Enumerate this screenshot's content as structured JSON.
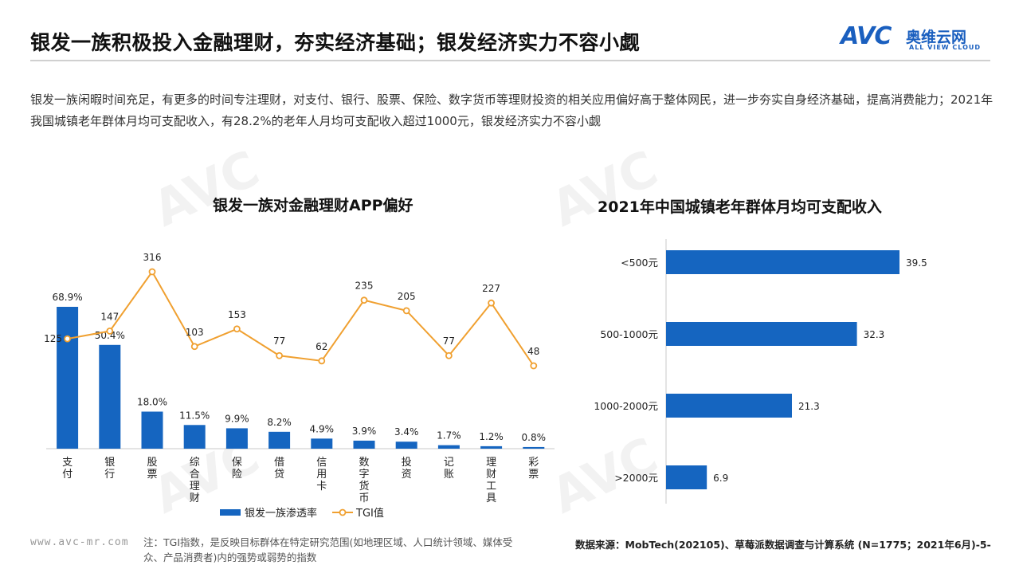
{
  "header": {
    "title": "银发一族积极投入金融理财，夯实经济基础；银发经济实力不容小觑",
    "logo_main": "AVC",
    "logo_cn": "奥维云网",
    "logo_en": "ALL VIEW CLOUD"
  },
  "intro": "银发一族闲暇时间充足，有更多的时间专注理财，对支付、银行、股票、保险、数字货币等理财投资的相关应用偏好高于整体网民，进一步夯实自身经济基础，提高消费能力；2021年我国城镇老年群体月均可支配收入，有28.2%的老年人月均可支配收入超过1000元，银发经济实力不容小觑",
  "chart_data": [
    {
      "type": "bar+line",
      "title": "银发一族对金融理财APP偏好",
      "categories": [
        "支付",
        "银行",
        "股票",
        "综合理财",
        "保险",
        "借贷",
        "信用卡",
        "数字货币",
        "投资",
        "记账",
        "理财工具",
        "彩票"
      ],
      "series": [
        {
          "name": "银发一族渗透率",
          "type": "bar",
          "values": [
            68.9,
            50.4,
            18.0,
            11.5,
            9.9,
            8.2,
            4.9,
            3.9,
            3.4,
            1.7,
            1.2,
            0.8
          ],
          "labels": [
            "68.9%",
            "50.4%",
            "18.0%",
            "11.5%",
            "9.9%",
            "8.2%",
            "4.9%",
            "3.9%",
            "3.4%",
            "1.7%",
            "1.2%",
            "0.8%"
          ],
          "color": "#1565c0"
        },
        {
          "name": "TGI值",
          "type": "line",
          "values": [
            125,
            147,
            316,
            103,
            153,
            77,
            62,
            235,
            205,
            77,
            227,
            48
          ],
          "labels": [
            "125",
            "147",
            "316",
            "103",
            "153",
            "77",
            "62",
            "235",
            "205",
            "77",
            "227",
            "48"
          ],
          "color": "#f0a030"
        }
      ],
      "legend_position": "bottom"
    },
    {
      "type": "bar",
      "orientation": "horizontal",
      "title": "2021年中国城镇老年群体月均可支配收入",
      "categories": [
        "<500元",
        "500-1000元",
        "1000-2000元",
        ">2000元"
      ],
      "values": [
        39.5,
        32.3,
        21.3,
        6.9
      ],
      "labels": [
        "39.5",
        "32.3",
        "21.3",
        "6.9"
      ],
      "color": "#1565c0"
    }
  ],
  "footer": {
    "url": "www.avc-mr.com",
    "note": "注：TGI指数，是反映目标群体在特定研究范围(如地理区域、人口统计领域、媒体受众、产品消费者)内的强势或弱势的指数",
    "source": "数据来源：MobTech(202105)、草莓派数据调查与计算系统 (N=1775；2021年6月)",
    "page": "-5-"
  }
}
